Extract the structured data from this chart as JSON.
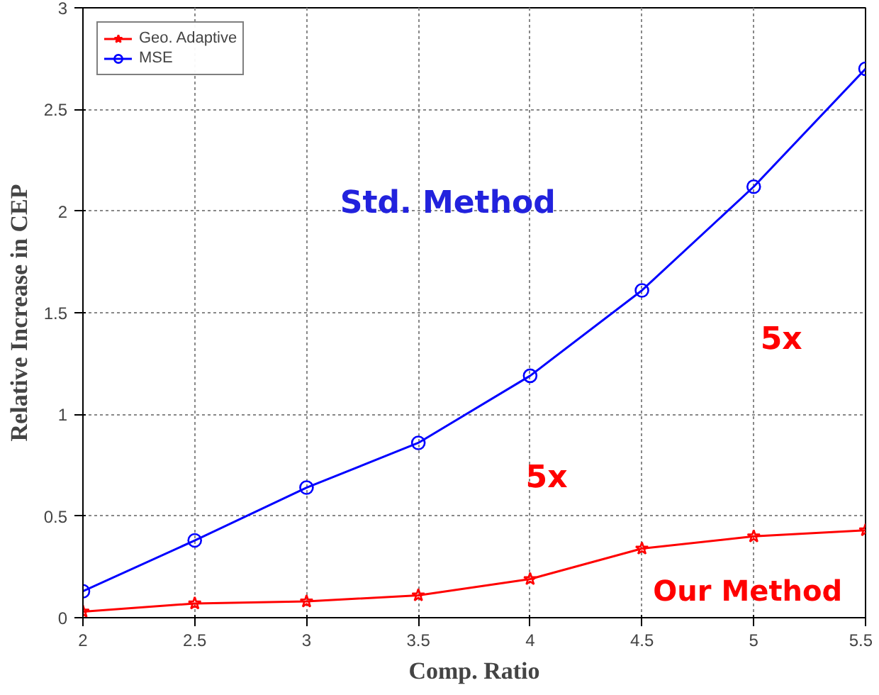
{
  "chart_data": {
    "type": "line",
    "xlabel": "Comp. Ratio",
    "ylabel": "Relative Increase in CEP",
    "x": [
      2,
      2.5,
      3,
      3.5,
      4,
      4.5,
      5,
      5.5
    ],
    "series": [
      {
        "name": "Geo. Adaptive",
        "color": "#ff0000",
        "marker": "star",
        "values": [
          0.03,
          0.07,
          0.08,
          0.11,
          0.19,
          0.34,
          0.4,
          0.43
        ]
      },
      {
        "name": "MSE",
        "color": "#0000ff",
        "marker": "circle",
        "values": [
          0.13,
          0.38,
          0.64,
          0.86,
          1.19,
          1.61,
          2.12,
          2.7
        ]
      }
    ],
    "xlim": [
      2,
      5.5
    ],
    "xticks": [
      2,
      2.5,
      3,
      3.5,
      4,
      4.5,
      5,
      5.5
    ],
    "ylim": [
      0,
      3
    ],
    "yticks": [
      0,
      0.5,
      1,
      1.5,
      2,
      2.5,
      3
    ],
    "grid": true,
    "legend": "top left",
    "line_style": "solid",
    "annotations": [
      "Std. Method",
      "Our Method",
      "5x",
      "5x"
    ]
  }
}
